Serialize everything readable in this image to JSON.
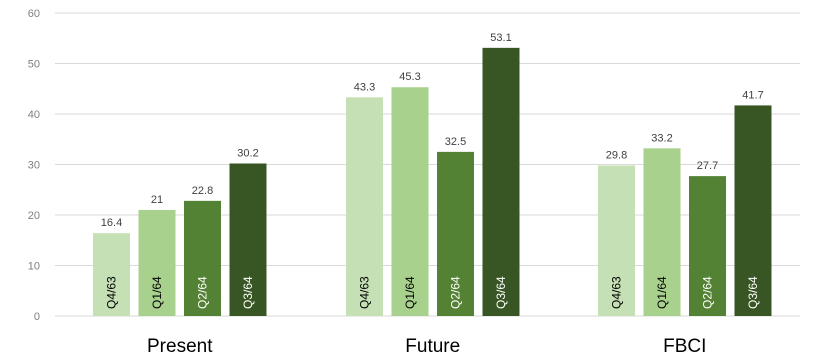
{
  "chart_data": {
    "type": "bar",
    "categories": [
      "Present",
      "Future",
      "FBCI"
    ],
    "series": [
      {
        "name": "Q4/63",
        "values": [
          16.4,
          43.3,
          29.8
        ],
        "color": "#c5e0b4",
        "label_color": "#000000"
      },
      {
        "name": "Q1/64",
        "values": [
          21,
          45.3,
          33.2
        ],
        "color": "#a9d18e",
        "label_color": "#000000"
      },
      {
        "name": "Q2/64",
        "values": [
          22.8,
          32.5,
          27.7
        ],
        "color": "#548235",
        "label_color": "#ffffff"
      },
      {
        "name": "Q3/64",
        "values": [
          30.2,
          53.1,
          41.7
        ],
        "color": "#375623",
        "label_color": "#ffffff"
      }
    ],
    "ylim": [
      0,
      60
    ],
    "yticks": [
      0,
      10,
      20,
      30,
      40,
      50,
      60
    ],
    "grid": true,
    "title": "",
    "xlabel": "",
    "ylabel": ""
  }
}
